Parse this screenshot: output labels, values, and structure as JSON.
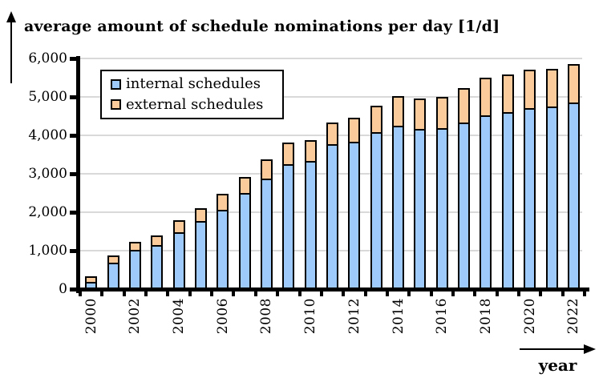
{
  "title": "average amount of schedule nominations per day [1/d]",
  "x_axis_arrow_label": "year",
  "colors": {
    "internal": "#9DC9FB",
    "external": "#FCCB9C",
    "segment_border": "#000000",
    "gridline": "#D9D9D9",
    "axis": "#000000"
  },
  "legend": {
    "items": [
      {
        "label": "internal schedules",
        "color_key": "internal"
      },
      {
        "label": "external schedules",
        "color_key": "external"
      }
    ]
  },
  "chart_data": {
    "type": "bar",
    "stacked": true,
    "title": "average amount of schedule nominations per day [1/d]",
    "xlabel": "year",
    "ylabel": "average amount of schedule nominations per day [1/d]",
    "categories": [
      "2000",
      "2001",
      "2002",
      "2003",
      "2004",
      "2005",
      "2006",
      "2007",
      "2008",
      "2009",
      "2010",
      "2011",
      "2012",
      "2013",
      "2014",
      "2015",
      "2016",
      "2017",
      "2018",
      "2019",
      "2020",
      "2021",
      "2022"
    ],
    "series": [
      {
        "name": "internal schedules",
        "values": [
          180,
          680,
          1020,
          1140,
          1470,
          1780,
          2060,
          2510,
          2880,
          3240,
          3340,
          3770,
          3830,
          4080,
          4250,
          4160,
          4180,
          4330,
          4530,
          4600,
          4710,
          4740,
          4850
        ]
      },
      {
        "name": "external schedules",
        "values": [
          150,
          190,
          210,
          260,
          310,
          330,
          420,
          420,
          500,
          560,
          550,
          570,
          630,
          680,
          770,
          790,
          820,
          890,
          980,
          980,
          1000,
          980,
          1000
        ]
      }
    ],
    "ylim": [
      0,
      6000
    ],
    "ytick_step": 1000,
    "ytick_labels": [
      "0",
      "1,000",
      "2,000",
      "3,000",
      "4,000",
      "5,000",
      "6,000"
    ],
    "xtick_labels_shown": [
      "2000",
      "2002",
      "2004",
      "2006",
      "2008",
      "2010",
      "2012",
      "2014",
      "2016",
      "2018",
      "2020",
      "2022"
    ],
    "grid": true,
    "legend_position": "top-left-inside"
  }
}
